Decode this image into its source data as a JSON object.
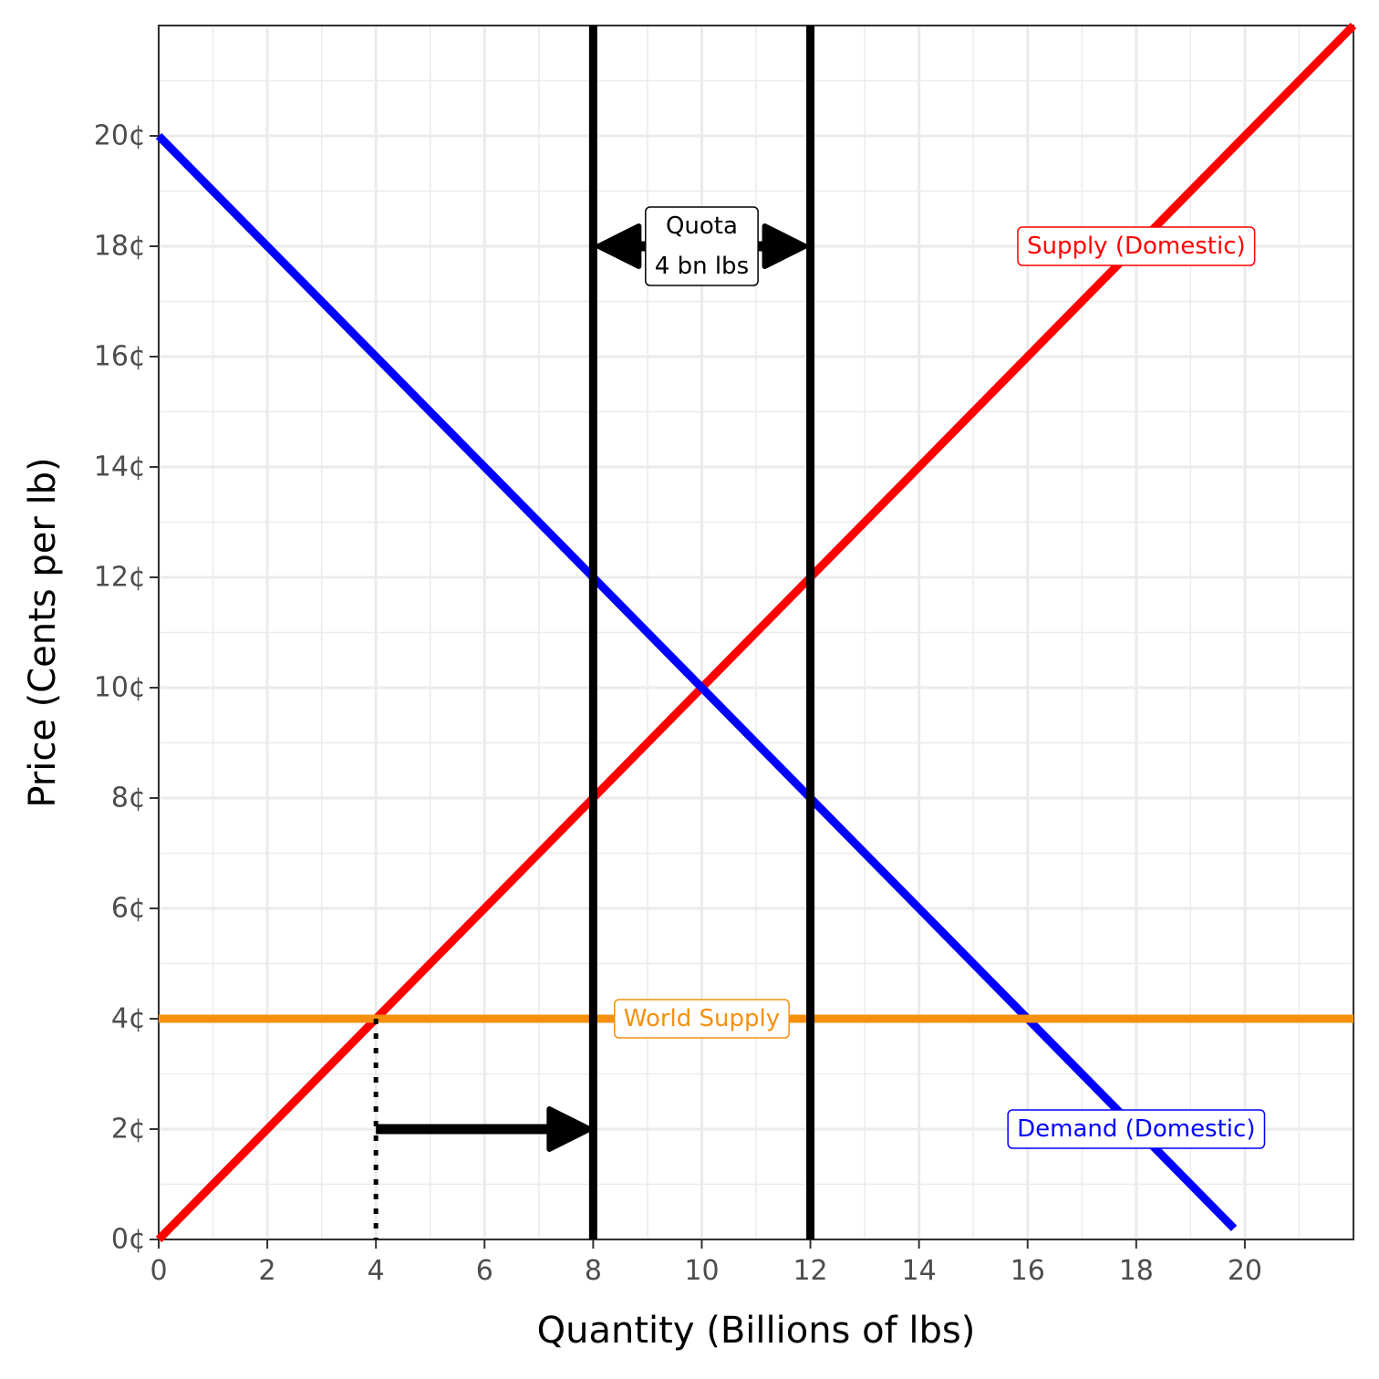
{
  "chart_data": {
    "type": "line",
    "xlabel": "Quantity (Billions of lbs)",
    "ylabel": "Price (Cents per lb)",
    "xlim": [
      0,
      22
    ],
    "ylim": [
      0,
      22
    ],
    "x_ticks": [
      0,
      2,
      4,
      6,
      8,
      10,
      12,
      14,
      16,
      18,
      20
    ],
    "x_tick_labels": [
      "0",
      "2",
      "4",
      "6",
      "8",
      "10",
      "12",
      "14",
      "16",
      "18",
      "20"
    ],
    "y_ticks": [
      0,
      2,
      4,
      6,
      8,
      10,
      12,
      14,
      16,
      18,
      20
    ],
    "y_tick_labels": [
      "0¢",
      "2¢",
      "4¢",
      "6¢",
      "8¢",
      "10¢",
      "12¢",
      "14¢",
      "16¢",
      "18¢",
      "20¢"
    ],
    "grid": true,
    "series": [
      {
        "name": "Supply (Domestic)",
        "color": "#ff0000",
        "x": [
          0,
          22
        ],
        "y": [
          0,
          22
        ]
      },
      {
        "name": "Demand (Domestic)",
        "color": "#0000ff",
        "x": [
          0,
          19.8
        ],
        "y": [
          20,
          0.2
        ]
      },
      {
        "name": "World Supply",
        "color": "#f5900e",
        "x": [
          0,
          22
        ],
        "y": [
          4,
          4
        ]
      }
    ],
    "vertical_lines": [
      {
        "x": 8,
        "color": "#000000"
      },
      {
        "x": 12,
        "color": "#000000"
      }
    ],
    "dotted_segment": {
      "x": [
        4,
        4
      ],
      "y": [
        0,
        4
      ]
    },
    "shift_arrow": {
      "x_from": 4,
      "x_to": 8,
      "y": 2
    },
    "quota_arrow": {
      "x_from": 8,
      "x_to": 12,
      "y": 18
    },
    "annotations": [
      {
        "lines": [
          "Supply (Domestic)"
        ],
        "x": 18,
        "y": 18,
        "color": "#ff0000"
      },
      {
        "lines": [
          "Demand (Domestic)"
        ],
        "x": 18,
        "y": 2,
        "color": "#0000ff"
      },
      {
        "lines": [
          "World Supply"
        ],
        "x": 10,
        "y": 4,
        "color": "#f5900e"
      },
      {
        "lines": [
          "Quota",
          "4 bn lbs"
        ],
        "x": 10,
        "y": 18,
        "color": "#000000"
      }
    ]
  }
}
